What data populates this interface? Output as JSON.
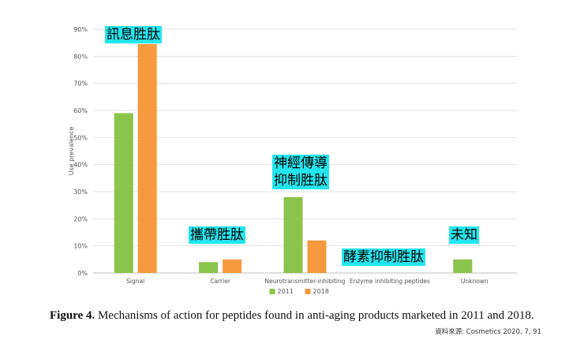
{
  "chart_data": {
    "type": "bar",
    "categories": [
      "Signal",
      "Carrier",
      "Neurotransmitter-inhibiting",
      "Enzyme inhibiting peptides",
      "Unknown"
    ],
    "series": [
      {
        "name": "2011",
        "values": [
          59,
          4,
          28,
          0,
          5
        ],
        "color": "#8cc34b"
      },
      {
        "name": "2018",
        "values": [
          84.5,
          5,
          12,
          0,
          0
        ],
        "color": "#f79a3e"
      }
    ],
    "ylabel": "Use prevalence",
    "ylim": [
      0,
      90
    ],
    "yticks": [
      "0%",
      "10%",
      "20%",
      "30%",
      "40%",
      "50%",
      "60%",
      "70%",
      "80%",
      "90%"
    ],
    "grid": true,
    "legend_position": "bottom-center",
    "annotations": [
      {
        "lines": [
          "訊息胜肽"
        ]
      },
      {
        "lines": [
          "攜帶胜肽"
        ]
      },
      {
        "lines": [
          "神經傳導",
          "抑制胜肽"
        ]
      },
      {
        "lines": [
          "酵素抑制胜肽"
        ]
      },
      {
        "lines": [
          "未知"
        ]
      }
    ]
  },
  "caption": {
    "label": "Figure 4.",
    "text": "Mechanisms of action for peptides found in anti-aging products marketed in 2011 and 2018."
  },
  "source": "資料來源: Cosmetics 2020, 7, 91"
}
